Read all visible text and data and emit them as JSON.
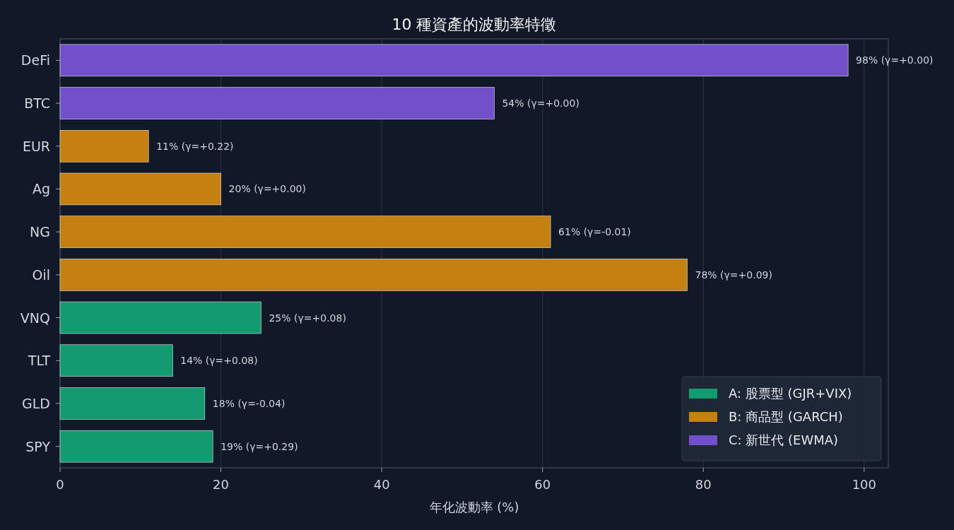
{
  "chart_data": {
    "type": "bar",
    "orientation": "horizontal",
    "title": "10 種資產的波動率特徵",
    "xlabel": "年化波動率 (%)",
    "categories": [
      "DeFi",
      "BTC",
      "EUR",
      "Ag",
      "NG",
      "Oil",
      "VNQ",
      "TLT",
      "GLD",
      "SPY"
    ],
    "series": [
      {
        "name": "A: 股票型 (GJR+VIX)",
        "color": "#139a6f",
        "values": [
          null,
          null,
          null,
          null,
          null,
          null,
          25,
          14,
          18,
          19
        ],
        "value_labels": [
          null,
          null,
          null,
          null,
          null,
          null,
          "25% (γ=+0.08)",
          "14% (γ=+0.08)",
          "18% (γ=-0.04)",
          "19% (γ=+0.29)"
        ]
      },
      {
        "name": "B: 商品型 (GARCH)",
        "color": "#c48112",
        "values": [
          null,
          null,
          11,
          20,
          61,
          78,
          null,
          null,
          null,
          null
        ],
        "value_labels": [
          null,
          null,
          "11% (γ=+0.22)",
          "20% (γ=+0.00)",
          "61% (γ=-0.01)",
          "78% (γ=+0.09)",
          null,
          null,
          null,
          null
        ]
      },
      {
        "name": "C: 新世代 (EWMA)",
        "color": "#7150c9",
        "values": [
          98,
          54,
          null,
          null,
          null,
          null,
          null,
          null,
          null,
          null
        ],
        "value_labels": [
          "98% (γ=+0.00)",
          "54% (γ=+0.00)",
          null,
          null,
          null,
          null,
          null,
          null,
          null,
          null
        ]
      }
    ],
    "xlim": [
      0,
      103
    ],
    "xticks": [
      0,
      20,
      40,
      60,
      80,
      100
    ],
    "grid": "x",
    "legend": "bottom right"
  }
}
